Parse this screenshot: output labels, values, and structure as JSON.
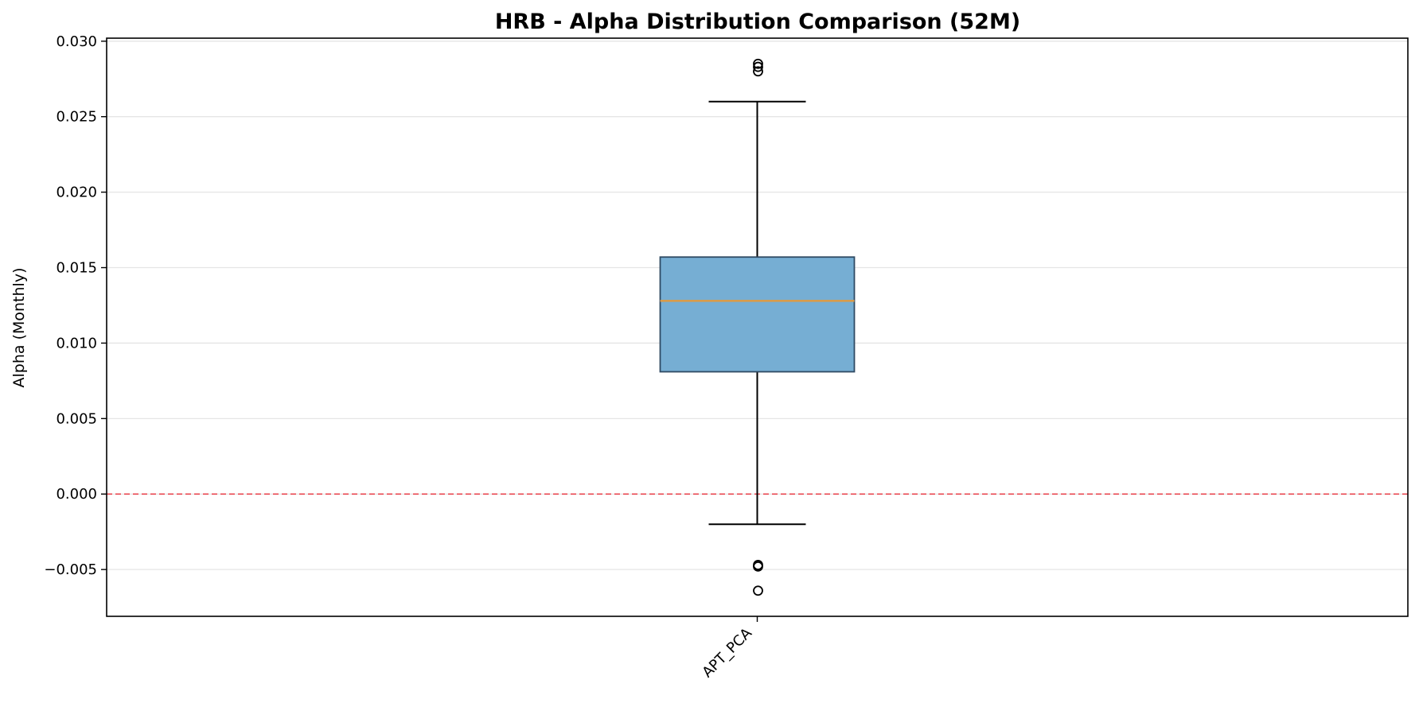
{
  "chart_data": {
    "type": "box",
    "title": "HRB - Alpha Distribution Comparison (52M)",
    "xlabel": "",
    "ylabel": "Alpha (Monthly)",
    "ylim": [
      -0.0081,
      0.0302
    ],
    "yticks": [
      -0.005,
      0.0,
      0.005,
      0.01,
      0.015,
      0.02,
      0.025,
      0.03
    ],
    "ytick_labels": [
      "−0.005",
      "0.000",
      "0.005",
      "0.010",
      "0.015",
      "0.020",
      "0.025",
      "0.030"
    ],
    "grid": "y",
    "reference_line": {
      "y": 0.0,
      "style": "dashed",
      "color": "#e8404a"
    },
    "categories": [
      "APT_PCA"
    ],
    "boxes": [
      {
        "name": "APT_PCA",
        "whisker_low": -0.002,
        "q1": 0.0081,
        "median": 0.0128,
        "q3": 0.0157,
        "whisker_high": 0.026,
        "outliers": [
          0.0285,
          0.0283,
          0.028,
          -0.0047,
          -0.0048,
          -0.0064
        ]
      }
    ],
    "colors": {
      "box_fill": "#76aed3",
      "box_edge": "#2f4a63",
      "median": "#d99b4a",
      "grid": "#e5e5e5"
    }
  }
}
